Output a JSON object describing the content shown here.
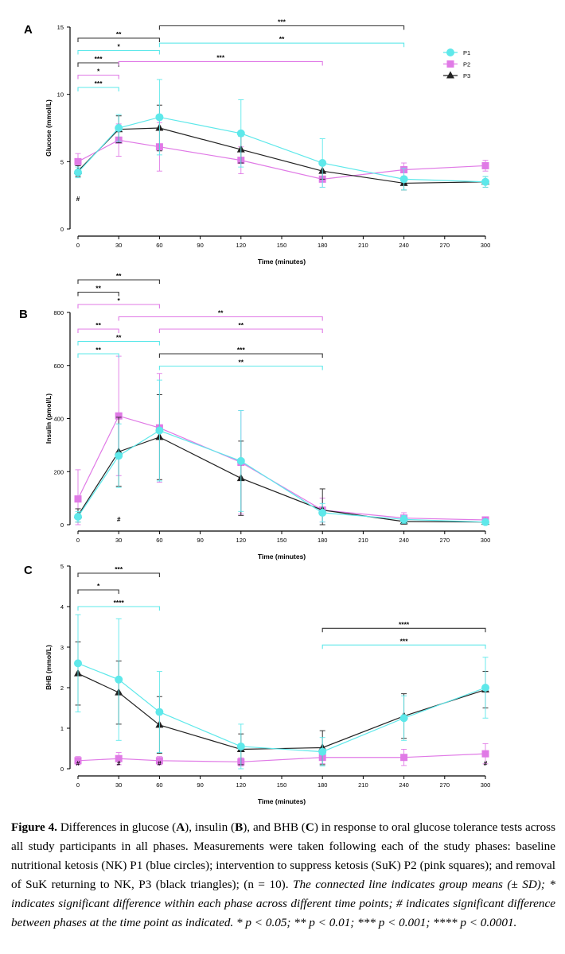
{
  "colors": {
    "p1": "#5ee8ea",
    "p2": "#e07ae6",
    "p3": "#222222",
    "axis": "#000000",
    "sig_p1": "#5ee8ea",
    "sig_p2": "#e07ae6",
    "sig_p3": "#333333"
  },
  "legend": [
    {
      "key": "p1",
      "label": "P1",
      "marker": "circle"
    },
    {
      "key": "p2",
      "label": "P2",
      "marker": "square"
    },
    {
      "key": "p3",
      "label": "P3",
      "marker": "triangle"
    }
  ],
  "chart_data": [
    {
      "type": "line",
      "panel_label": "A",
      "ylabel": "Glucose (mmol/L)",
      "xlabel": "Time (minutes)",
      "x": [
        0,
        30,
        60,
        120,
        180,
        240,
        300
      ],
      "xticks": [
        "0",
        "30",
        "60",
        "90",
        "120",
        "150",
        "180",
        "210",
        "240",
        "270",
        "300"
      ],
      "yticks": [
        "0",
        "5",
        "10",
        "15"
      ],
      "ylim": [
        0,
        15
      ],
      "series": [
        {
          "name": "P1",
          "key": "p1",
          "values": [
            4.2,
            7.5,
            8.3,
            7.1,
            4.9,
            3.7,
            3.5
          ],
          "sd": [
            0.4,
            1.0,
            2.8,
            2.5,
            1.8,
            0.8,
            0.4
          ]
        },
        {
          "name": "P2",
          "key": "p2",
          "values": [
            5.0,
            6.6,
            6.1,
            5.1,
            3.7,
            4.4,
            4.7
          ],
          "sd": [
            0.6,
            1.2,
            1.8,
            1.0,
            0.6,
            0.5,
            0.4
          ]
        },
        {
          "name": "P3",
          "key": "p3",
          "values": [
            4.3,
            7.4,
            7.5,
            5.9,
            4.3,
            3.4,
            3.5
          ],
          "sd": [
            0.4,
            1.0,
            1.7,
            1.0,
            0.6,
            0.5,
            0.4
          ]
        }
      ],
      "phase_marks": [
        {
          "x": 0,
          "text": "#"
        }
      ],
      "significance": [
        {
          "x1": 0,
          "x2": 60,
          "row": 0,
          "key": "sig_p3",
          "text": "**"
        },
        {
          "x1": 0,
          "x2": 60,
          "row": 1,
          "key": "sig_p1",
          "text": "*"
        },
        {
          "x1": 0,
          "x2": 30,
          "row": 2,
          "key": "sig_p3",
          "text": "***"
        },
        {
          "x1": 0,
          "x2": 30,
          "row": 3,
          "key": "sig_p2",
          "text": "*"
        },
        {
          "x1": 0,
          "x2": 30,
          "row": 4,
          "key": "sig_p1",
          "text": "***"
        },
        {
          "x1": 60,
          "x2": 240,
          "row": -1,
          "key": "sig_p3",
          "text": "***"
        },
        {
          "x1": 60,
          "x2": 240,
          "row": 0.4,
          "key": "sig_p1",
          "text": "**"
        },
        {
          "x1": 30,
          "x2": 180,
          "row": 1.9,
          "key": "sig_p2",
          "text": "***"
        }
      ]
    },
    {
      "type": "line",
      "panel_label": "B",
      "ylabel": "Insulin (pmol/L)",
      "xlabel": "Time (minutes)",
      "x": [
        0,
        30,
        60,
        120,
        180,
        240,
        300
      ],
      "xticks": [
        "0",
        "30",
        "60",
        "90",
        "120",
        "150",
        "180",
        "210",
        "240",
        "270",
        "300"
      ],
      "yticks": [
        "0",
        "200",
        "400",
        "600",
        "800"
      ],
      "ylim": [
        0,
        800
      ],
      "series": [
        {
          "name": "P1",
          "key": "p1",
          "values": [
            30,
            260,
            355,
            240,
            45,
            20,
            10
          ],
          "sd": [
            20,
            120,
            190,
            190,
            35,
            15,
            8
          ]
        },
        {
          "name": "P2",
          "key": "p2",
          "values": [
            97,
            410,
            365,
            235,
            55,
            25,
            18
          ],
          "sd": [
            110,
            225,
            205,
            195,
            45,
            20,
            12
          ]
        },
        {
          "name": "P3",
          "key": "p3",
          "values": [
            35,
            275,
            330,
            175,
            55,
            12,
            10
          ],
          "sd": [
            25,
            130,
            160,
            140,
            80,
            10,
            8
          ]
        }
      ],
      "phase_marks": [
        {
          "x": 30,
          "text": "#"
        }
      ],
      "significance": [
        {
          "x1": 0,
          "x2": 60,
          "row": 0,
          "key": "sig_p3",
          "text": "**"
        },
        {
          "x1": 0,
          "x2": 30,
          "row": 1,
          "key": "sig_p3",
          "text": "**"
        },
        {
          "x1": 0,
          "x2": 60,
          "row": 2,
          "key": "sig_p2",
          "text": "*"
        },
        {
          "x1": 30,
          "x2": 180,
          "row": 3,
          "key": "sig_p2",
          "text": "**"
        },
        {
          "x1": 0,
          "x2": 30,
          "row": 4,
          "key": "sig_p2",
          "text": "**"
        },
        {
          "x1": 60,
          "x2": 180,
          "row": 4,
          "key": "sig_p2",
          "text": "**"
        },
        {
          "x1": 0,
          "x2": 60,
          "row": 5,
          "key": "sig_p1",
          "text": "**"
        },
        {
          "x1": 0,
          "x2": 30,
          "row": 6,
          "key": "sig_p1",
          "text": "**"
        },
        {
          "x1": 60,
          "x2": 180,
          "row": 6,
          "key": "sig_p3",
          "text": "***"
        },
        {
          "x1": 60,
          "x2": 180,
          "row": 7,
          "key": "sig_p1",
          "text": "**"
        }
      ]
    },
    {
      "type": "line",
      "panel_label": "C",
      "ylabel": "BHB (mmol/L)",
      "xlabel": "Time (minutes)",
      "x": [
        0,
        30,
        60,
        120,
        180,
        240,
        300
      ],
      "xticks": [
        "0",
        "30",
        "60",
        "90",
        "120",
        "150",
        "180",
        "210",
        "240",
        "270",
        "300"
      ],
      "yticks": [
        "0",
        "1",
        "2",
        "3",
        "4",
        "5"
      ],
      "ylim": [
        0,
        5
      ],
      "series": [
        {
          "name": "P1",
          "key": "p1",
          "values": [
            2.6,
            2.2,
            1.4,
            0.55,
            0.42,
            1.25,
            2.0
          ],
          "sd": [
            1.2,
            1.5,
            1.0,
            0.55,
            0.35,
            0.55,
            0.75
          ]
        },
        {
          "name": "P2",
          "key": "p2",
          "values": [
            0.2,
            0.25,
            0.2,
            0.17,
            0.28,
            0.28,
            0.37
          ],
          "sd": [
            0.1,
            0.15,
            0.1,
            0.1,
            0.15,
            0.2,
            0.25
          ]
        },
        {
          "name": "P3",
          "key": "p3",
          "values": [
            2.35,
            1.88,
            1.08,
            0.48,
            0.52,
            1.3,
            1.95
          ],
          "sd": [
            0.78,
            0.78,
            0.7,
            0.38,
            0.42,
            0.55,
            0.45
          ]
        }
      ],
      "phase_marks": [
        {
          "x": 0,
          "text": "#"
        },
        {
          "x": 30,
          "text": "#"
        },
        {
          "x": 60,
          "text": "#"
        },
        {
          "x": 300,
          "text": "#"
        }
      ],
      "significance": [
        {
          "x1": 0,
          "x2": 60,
          "row": 0,
          "key": "sig_p3",
          "text": "***"
        },
        {
          "x1": 0,
          "x2": 30,
          "row": 1,
          "key": "sig_p3",
          "text": "*"
        },
        {
          "x1": 0,
          "x2": 60,
          "row": 2,
          "key": "sig_p1",
          "text": "****"
        },
        {
          "x1": 180,
          "x2": 300,
          "row": 3.3,
          "key": "sig_p3",
          "text": "****"
        },
        {
          "x1": 180,
          "x2": 300,
          "row": 4.3,
          "key": "sig_p1",
          "text": "***"
        }
      ]
    }
  ],
  "caption": {
    "lead": "Figure 4.",
    "t1": " Differences in glucose (",
    "a": "A",
    "t2": "), insulin (",
    "b": "B",
    "t3": "), and BHB (",
    "c": "C",
    "t4": ") in response to oral glucose tolerance tests across all study participants in all phases. Measurements were taken following each of the study phases: baseline nutritional ketosis (NK) P1 (blue circles); intervention to suppress ketosis (SuK) P2 (pink squares); and removal of SuK returning to NK, P3 (black triangles); (n = 10).",
    "italic": " The connected line indicates group means (± SD); * indicates significant difference within each phase across different time points; # indicates significant difference between phases at the time point as indicated. * p < 0.05; ** p < 0.01; *** p < 0.001; **** p < 0.0001."
  }
}
